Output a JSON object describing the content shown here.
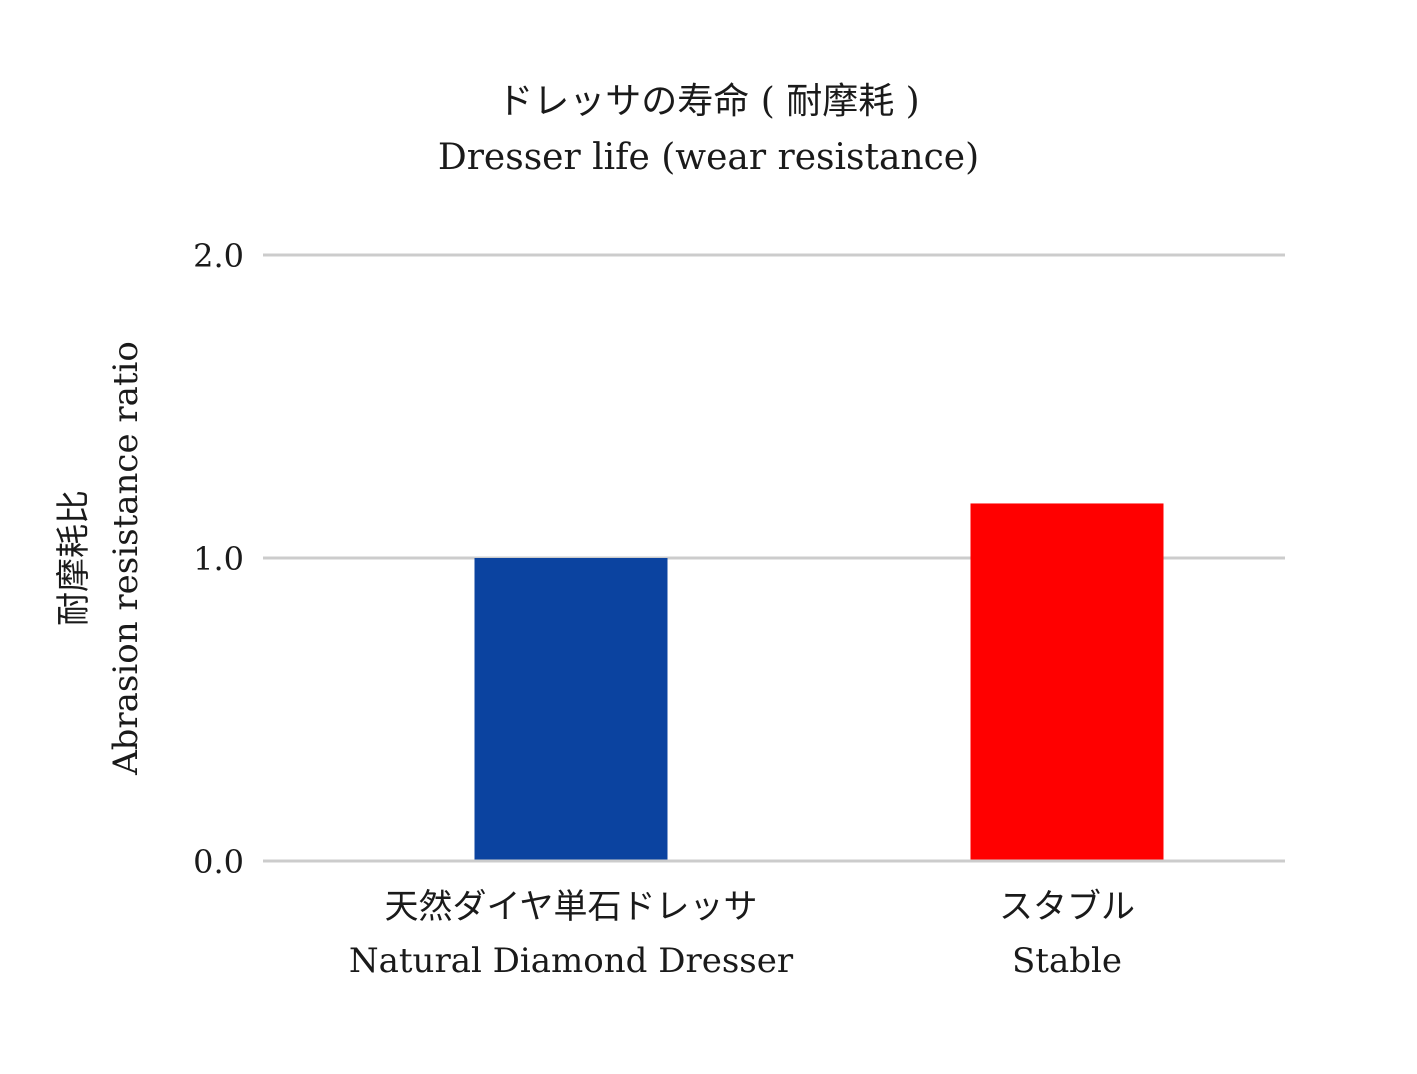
{
  "chart_data": {
    "type": "bar",
    "title": "ドレッサの寿命 ( 耐摩耗 )",
    "subtitle": "Dresser life (wear resistance)",
    "ylabel": "耐摩耗比",
    "ylabel_en": "Abrasion resistance ratio",
    "xlabel": "",
    "categories": [
      {
        "ja": "天然ダイヤ単石ドレッサ",
        "en": "Natural Diamond Dresser"
      },
      {
        "ja": "スタブル",
        "en": "Stable"
      }
    ],
    "values": [
      1.0,
      1.18
    ],
    "colors": [
      "#0b43a0",
      "#ff0000"
    ],
    "ylim": [
      0,
      2.0
    ],
    "yticks": [
      "0.0",
      "1.0",
      "2.0"
    ],
    "ytick_values": [
      0,
      1.0,
      2.0
    ],
    "grid": true,
    "gridline_color": "#cccccc",
    "legend": "none"
  }
}
